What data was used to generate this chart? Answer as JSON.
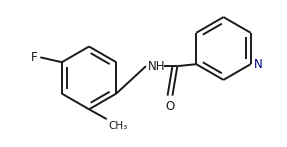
{
  "bg_color": "#ffffff",
  "line_color": "#1a1a1a",
  "N_color": "#00008b",
  "lw": 1.4,
  "figsize": [
    2.87,
    1.47
  ],
  "dpi": 100,
  "font_size": 8.5,
  "F_label": "F",
  "N_label": "N",
  "NH_label": "NH",
  "O_label": "O"
}
